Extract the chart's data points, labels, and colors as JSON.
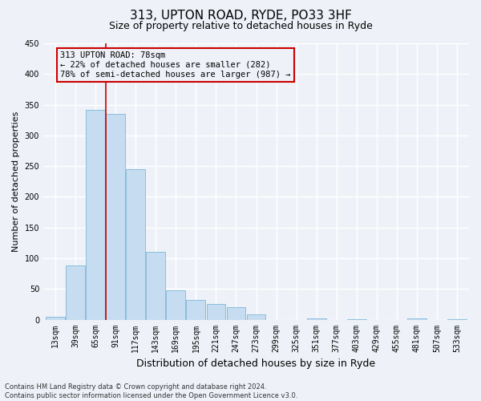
{
  "title": "313, UPTON ROAD, RYDE, PO33 3HF",
  "subtitle": "Size of property relative to detached houses in Ryde",
  "xlabel": "Distribution of detached houses by size in Ryde",
  "ylabel": "Number of detached properties",
  "bar_values": [
    5,
    88,
    342,
    335,
    245,
    110,
    48,
    32,
    25,
    20,
    9,
    0,
    0,
    2,
    0,
    1,
    0,
    0,
    2,
    0,
    1
  ],
  "bin_labels": [
    "13sqm",
    "39sqm",
    "65sqm",
    "91sqm",
    "117sqm",
    "143sqm",
    "169sqm",
    "195sqm",
    "221sqm",
    "247sqm",
    "273sqm",
    "299sqm",
    "325sqm",
    "351sqm",
    "377sqm",
    "403sqm",
    "429sqm",
    "455sqm",
    "481sqm",
    "507sqm",
    "533sqm"
  ],
  "bar_color": "#c6dcf0",
  "bar_edgecolor": "#7eb8d8",
  "vline_color": "#cc0000",
  "vline_x": 2.5,
  "annotation_box_text": "313 UPTON ROAD: 78sqm\n← 22% of detached houses are smaller (282)\n78% of semi-detached houses are larger (987) →",
  "annotation_box_color": "#cc0000",
  "ylim": [
    0,
    450
  ],
  "yticks": [
    0,
    50,
    100,
    150,
    200,
    250,
    300,
    350,
    400,
    450
  ],
  "footer_line1": "Contains HM Land Registry data © Crown copyright and database right 2024.",
  "footer_line2": "Contains public sector information licensed under the Open Government Licence v3.0.",
  "bg_color": "#eef2f8",
  "grid_color": "#ffffff",
  "title_fontsize": 11,
  "subtitle_fontsize": 9,
  "tick_fontsize": 7,
  "ylabel_fontsize": 8,
  "xlabel_fontsize": 9,
  "footer_fontsize": 6,
  "ann_fontsize": 7.5
}
